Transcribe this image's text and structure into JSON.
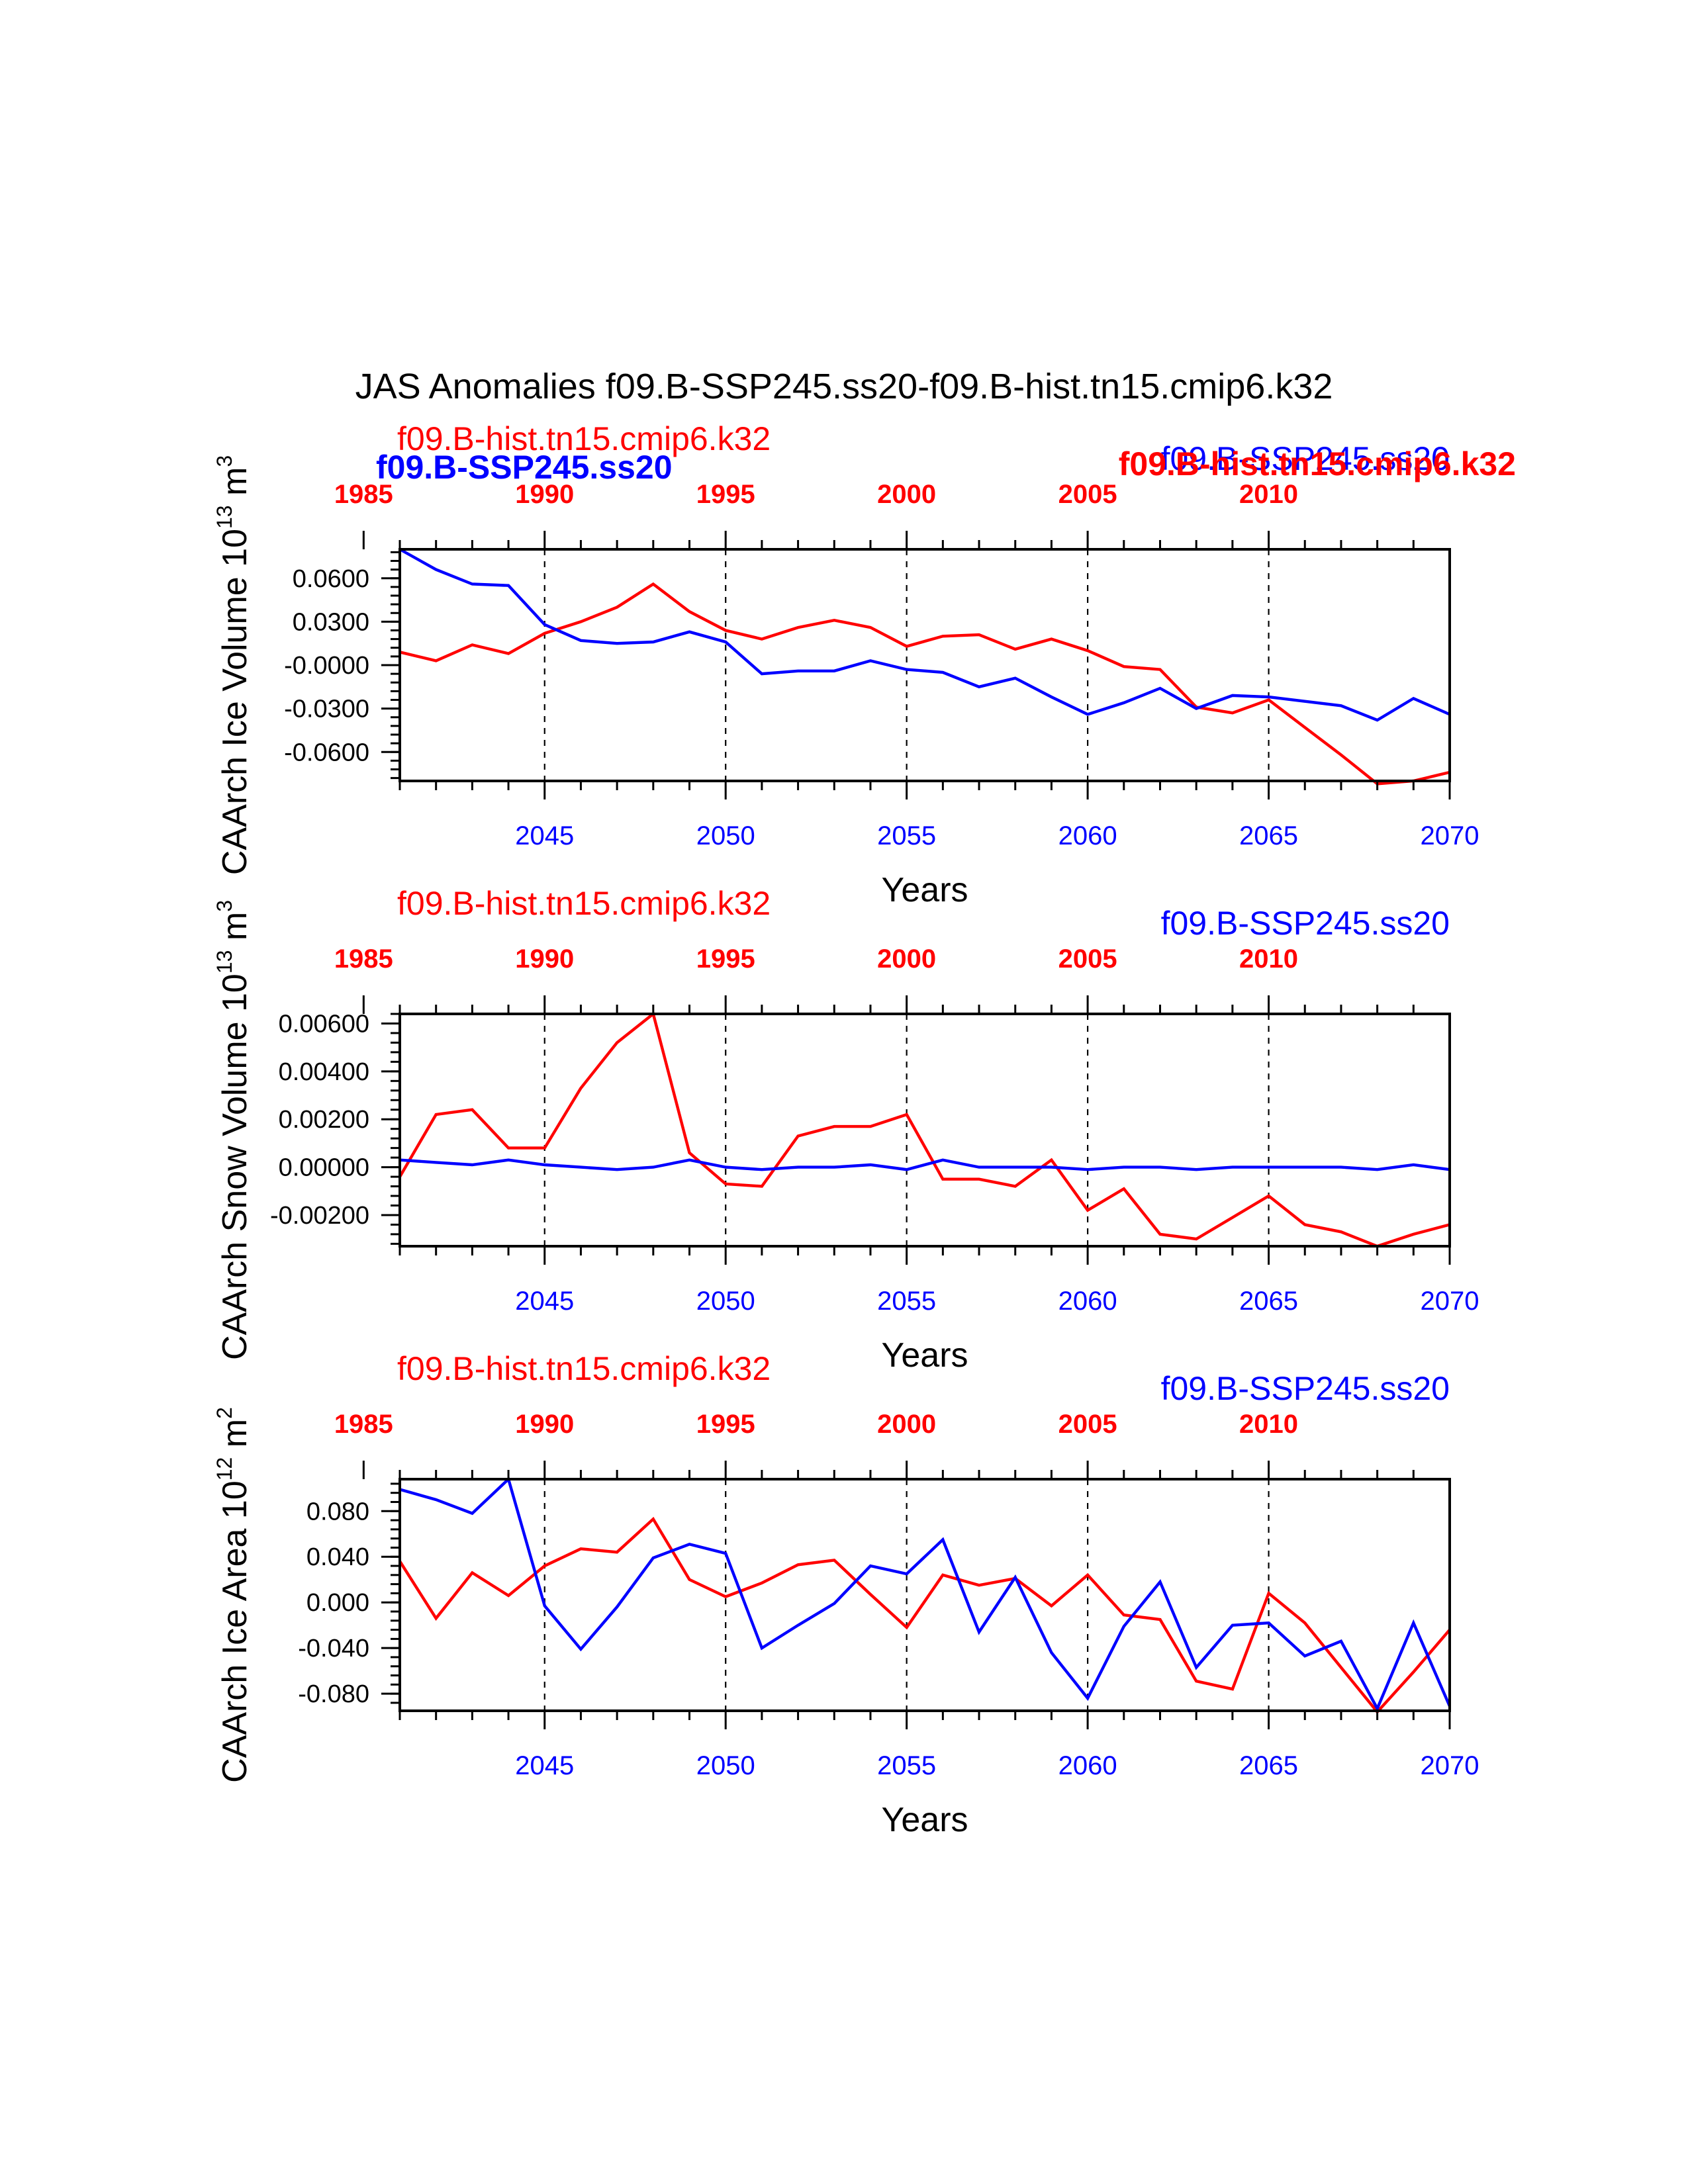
{
  "title": "JAS Anomalies f09.B-SSP245.ss20-f09.B-hist.tn15.cmip6.k32",
  "colors": {
    "ssp": "#0000ff",
    "hist": "#ff0000",
    "axis": "#000000"
  },
  "series_labels": {
    "hist": "f09.B-hist.tn15.cmip6.k32",
    "ssp": "f09.B-SSP245.ss20"
  },
  "xlabel": "Years",
  "chart_data": [
    {
      "type": "line",
      "ylabel_main": "CAArch Ice Volume 10",
      "ylabel_exp": "13",
      "ylabel_unit": " m",
      "ylabel_unit_exp": "3",
      "x": [
        2041,
        2042,
        2043,
        2044,
        2045,
        2046,
        2047,
        2048,
        2049,
        2050,
        2051,
        2052,
        2053,
        2054,
        2055,
        2056,
        2057,
        2058,
        2059,
        2060,
        2061,
        2062,
        2063,
        2064,
        2065,
        2066,
        2067,
        2068,
        2069,
        2070
      ],
      "xlim": [
        2041,
        2070
      ],
      "ylim": [
        -0.08,
        0.08
      ],
      "yticks": [
        0.06,
        0.03,
        0.0,
        -0.03,
        -0.06
      ],
      "ytick_labels": [
        "0.0600",
        "0.0300",
        "-0.0000",
        "-0.0300",
        "-0.0600"
      ],
      "bottom_ticks": [
        2045,
        2050,
        2055,
        2060,
        2065,
        2070
      ],
      "top_years": [
        1985,
        1990,
        1995,
        2000,
        2005,
        2010
      ],
      "series": [
        {
          "name": "f09.B-SSP245.ss20",
          "color": "#0000ff",
          "values": [
            0.08,
            0.066,
            0.056,
            0.055,
            0.028,
            0.017,
            0.015,
            0.016,
            0.023,
            0.016,
            -0.006,
            -0.004,
            -0.004,
            0.003,
            -0.003,
            -0.005,
            -0.015,
            -0.009,
            -0.022,
            -0.034,
            -0.026,
            -0.016,
            -0.03,
            -0.021,
            -0.022,
            -0.025,
            -0.028,
            -0.038,
            -0.023,
            -0.034
          ]
        },
        {
          "name": "f09.B-hist.tn15.cmip6.k32",
          "color": "#ff0000",
          "values": [
            0.009,
            0.003,
            0.014,
            0.008,
            0.022,
            0.03,
            0.04,
            0.056,
            0.037,
            0.024,
            0.018,
            0.026,
            0.031,
            0.026,
            0.013,
            0.02,
            0.021,
            0.011,
            0.018,
            0.01,
            -0.001,
            -0.003,
            -0.029,
            -0.033,
            -0.024,
            -0.043,
            -0.062,
            -0.082,
            -0.08,
            -0.074
          ]
        }
      ]
    },
    {
      "type": "line",
      "ylabel_main": "CAArch Snow Volume 10",
      "ylabel_exp": "13",
      "ylabel_unit": " m",
      "ylabel_unit_exp": "3",
      "x": [
        2041,
        2042,
        2043,
        2044,
        2045,
        2046,
        2047,
        2048,
        2049,
        2050,
        2051,
        2052,
        2053,
        2054,
        2055,
        2056,
        2057,
        2058,
        2059,
        2060,
        2061,
        2062,
        2063,
        2064,
        2065,
        2066,
        2067,
        2068,
        2069,
        2070
      ],
      "xlim": [
        2041,
        2070
      ],
      "ylim": [
        -0.0033,
        0.0064
      ],
      "yticks": [
        0.006,
        0.004,
        0.002,
        0.0,
        -0.002
      ],
      "ytick_labels": [
        "0.00600",
        "0.00400",
        "0.00200",
        "0.00000",
        "-0.00200"
      ],
      "bottom_ticks": [
        2045,
        2050,
        2055,
        2060,
        2065,
        2070
      ],
      "top_years": [
        1985,
        1990,
        1995,
        2000,
        2005,
        2010
      ],
      "series": [
        {
          "name": "f09.B-SSP245.ss20",
          "color": "#0000ff",
          "values": [
            0.0003,
            0.0002,
            0.0001,
            0.0003,
            0.0001,
            0.0,
            -0.0001,
            0.0,
            0.0003,
            0.0,
            -0.0001,
            0.0,
            0.0,
            0.0001,
            -0.0001,
            0.0003,
            0.0,
            0.0,
            0.0,
            -0.0001,
            0.0,
            0.0,
            -0.0001,
            0.0,
            0.0,
            0.0,
            0.0,
            -0.0001,
            0.0001,
            -0.0001
          ]
        },
        {
          "name": "f09.B-hist.tn15.cmip6.k32",
          "color": "#ff0000",
          "values": [
            -0.0004,
            0.0022,
            0.0024,
            0.0008,
            0.0008,
            0.0033,
            0.0052,
            0.0064,
            0.0006,
            -0.0007,
            -0.0008,
            0.0013,
            0.0017,
            0.0017,
            0.0022,
            -0.0005,
            -0.0005,
            -0.0008,
            0.0003,
            -0.0018,
            -0.0009,
            -0.0028,
            -0.003,
            -0.0021,
            -0.0012,
            -0.0024,
            -0.0027,
            -0.0033,
            -0.0028,
            -0.0024
          ]
        }
      ]
    },
    {
      "type": "line",
      "ylabel_main": "CAArch Ice Area 10",
      "ylabel_exp": "12",
      "ylabel_unit": " m",
      "ylabel_unit_exp": "2",
      "x": [
        2041,
        2042,
        2043,
        2044,
        2045,
        2046,
        2047,
        2048,
        2049,
        2050,
        2051,
        2052,
        2053,
        2054,
        2055,
        2056,
        2057,
        2058,
        2059,
        2060,
        2061,
        2062,
        2063,
        2064,
        2065,
        2066,
        2067,
        2068,
        2069,
        2070
      ],
      "xlim": [
        2041,
        2070
      ],
      "ylim": [
        -0.095,
        0.108
      ],
      "yticks": [
        0.08,
        0.04,
        0.0,
        -0.04,
        -0.08
      ],
      "ytick_labels": [
        "0.080",
        "0.040",
        "0.000",
        "-0.040",
        "-0.080"
      ],
      "bottom_ticks": [
        2045,
        2050,
        2055,
        2060,
        2065,
        2070
      ],
      "top_years": [
        1985,
        1990,
        1995,
        2000,
        2005,
        2010
      ],
      "series": [
        {
          "name": "f09.B-SSP245.ss20",
          "color": "#0000ff",
          "values": [
            0.099,
            0.09,
            0.078,
            0.108,
            -0.003,
            -0.041,
            -0.004,
            0.039,
            0.051,
            0.043,
            -0.04,
            -0.02,
            -0.001,
            0.032,
            0.025,
            0.055,
            -0.026,
            0.022,
            -0.044,
            -0.084,
            -0.021,
            0.018,
            -0.057,
            -0.02,
            -0.018,
            -0.047,
            -0.034,
            -0.093,
            -0.018,
            -0.091
          ]
        },
        {
          "name": "f09.B-hist.tn15.cmip6.k32",
          "color": "#ff0000",
          "values": [
            0.036,
            -0.014,
            0.026,
            0.006,
            0.032,
            0.047,
            0.044,
            0.073,
            0.02,
            0.005,
            0.017,
            0.033,
            0.037,
            0.007,
            -0.022,
            0.024,
            0.015,
            0.021,
            -0.003,
            0.024,
            -0.011,
            -0.015,
            -0.069,
            -0.076,
            0.008,
            -0.018,
            -0.057,
            -0.096,
            -0.061,
            -0.024
          ]
        }
      ]
    }
  ]
}
